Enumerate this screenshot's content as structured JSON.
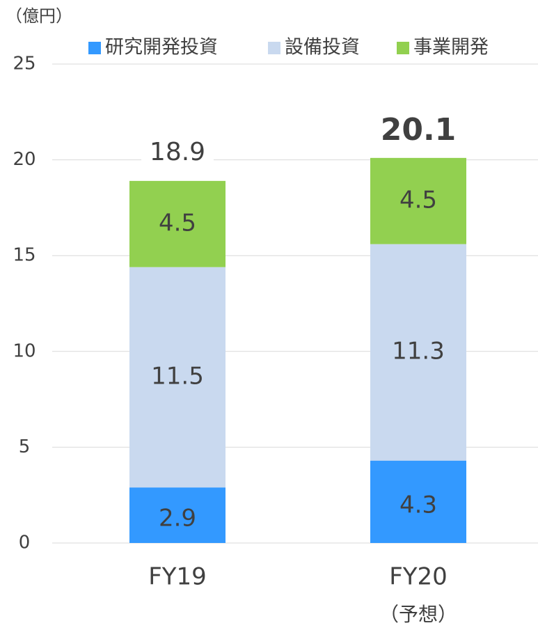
{
  "chart_data": {
    "type": "stacked_bar",
    "unit_label": "（億円）",
    "categories": [
      "FY19",
      "FY20"
    ],
    "category_subtitles": [
      null,
      "（予想）"
    ],
    "series": [
      {
        "name": "研究開発投資",
        "color": "#3399ff",
        "values": [
          2.9,
          4.3
        ]
      },
      {
        "name": "設備投資",
        "color": "#c9d9ef",
        "values": [
          11.5,
          11.3
        ]
      },
      {
        "name": "事業開発",
        "color": "#92d050",
        "values": [
          4.5,
          4.5
        ]
      }
    ],
    "totals": [
      18.9,
      20.1
    ],
    "total_colors": [
      "#404040",
      "#ff0000"
    ],
    "ylim": [
      0,
      25
    ],
    "yticks": [
      0,
      5,
      10,
      15,
      20,
      25
    ],
    "grid": true,
    "legend": "top"
  }
}
